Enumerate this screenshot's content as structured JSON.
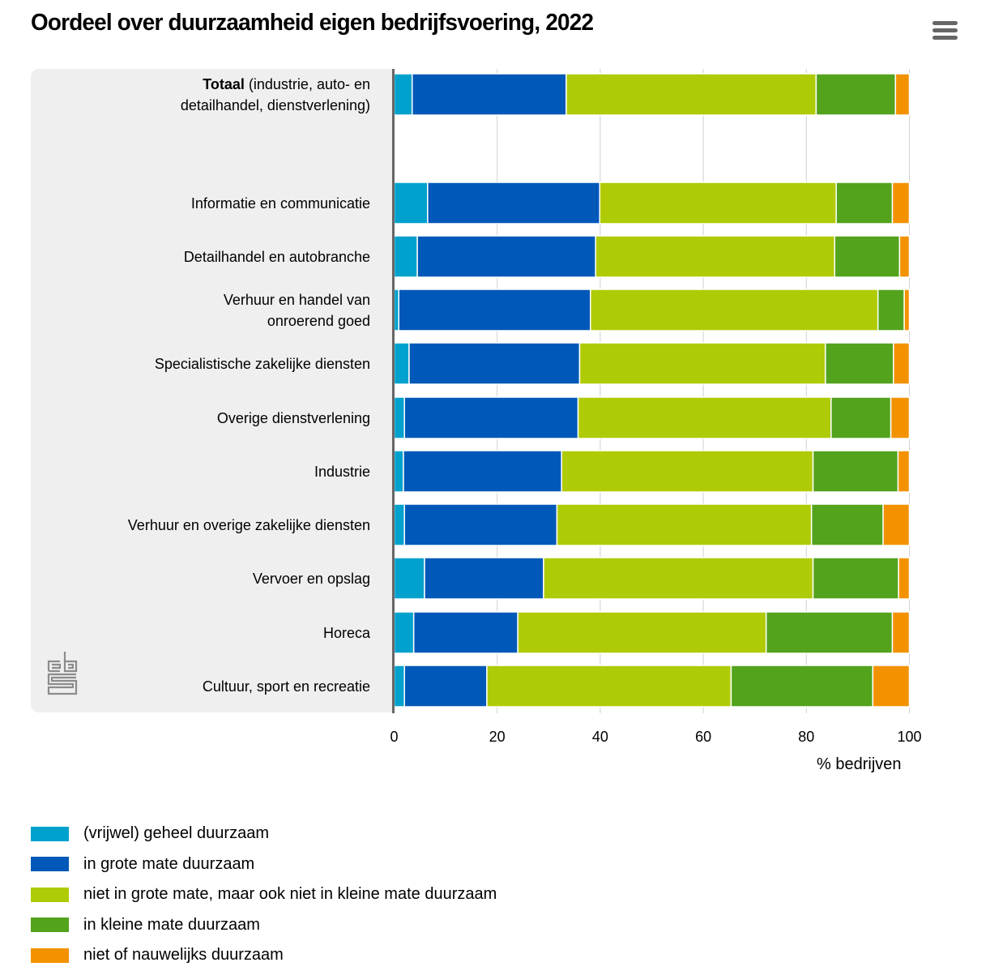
{
  "title": "Oordeel over duurzaamheid eigen bedrijfsvoering, 2022",
  "menu_icon": "hamburger-menu-icon",
  "logo_icon": "cbs-logo-icon",
  "colors": {
    "vrijwel_geheel": "#00a1cd",
    "grote_mate": "#0058b8",
    "neutraal": "#afcb05",
    "kleine_mate": "#53a31d",
    "niet": "#f39200"
  },
  "chart_data": {
    "type": "bar",
    "orientation": "horizontal",
    "stacked": true,
    "title": "Oordeel over duurzaamheid eigen bedrijfsvoering, 2022",
    "xlabel": "% bedrijven",
    "ylabel": "",
    "xlim": [
      0,
      100
    ],
    "xticks": [
      "0",
      "20",
      "40",
      "60",
      "80",
      "100"
    ],
    "grid": true,
    "legend_position": "bottom-left",
    "categories": [
      {
        "bold": "Totaal",
        "rest": " (industrie, auto- en\ndetailhandel, dienstverlening)"
      },
      {
        "bold": "",
        "rest": "Informatie en communicatie"
      },
      {
        "bold": "",
        "rest": "Detailhandel en autobranche"
      },
      {
        "bold": "",
        "rest": "Verhuur en handel van\nonroerend goed"
      },
      {
        "bold": "",
        "rest": "Specialistische zakelijke diensten"
      },
      {
        "bold": "",
        "rest": "Overige dienstverlening"
      },
      {
        "bold": "",
        "rest": "Industrie"
      },
      {
        "bold": "",
        "rest": "Verhuur en overige zakelijke diensten"
      },
      {
        "bold": "",
        "rest": "Vervoer en opslag"
      },
      {
        "bold": "",
        "rest": "Horeca"
      },
      {
        "bold": "",
        "rest": "Cultuur, sport en recreatie"
      }
    ],
    "series": [
      {
        "name": "(vrijwel) geheel duurzaam",
        "color": "#00a1cd",
        "values": [
          3.5,
          6.5,
          4.5,
          0.9,
          2.9,
          2.0,
          1.8,
          2.0,
          5.9,
          3.8,
          2.0
        ]
      },
      {
        "name": "in grote mate duurzaam",
        "color": "#0058b8",
        "values": [
          29.9,
          33.4,
          34.6,
          37.2,
          33.1,
          33.7,
          30.7,
          29.6,
          23.1,
          20.2,
          16.0
        ]
      },
      {
        "name": "niet in grote mate, maar ook niet in kleine mate duurzaam",
        "color": "#afcb05",
        "values": [
          48.5,
          45.9,
          46.4,
          55.8,
          47.7,
          49.1,
          48.8,
          49.4,
          52.3,
          48.2,
          47.4
        ]
      },
      {
        "name": "in kleine mate duurzaam",
        "color": "#53a31d",
        "values": [
          15.4,
          10.9,
          12.6,
          5.1,
          13.2,
          11.6,
          16.5,
          13.9,
          16.6,
          24.5,
          27.5
        ]
      },
      {
        "name": "niet of nauwelijks duurzaam",
        "color": "#f39200",
        "values": [
          2.7,
          3.3,
          1.9,
          1.0,
          3.1,
          3.6,
          2.2,
          5.1,
          2.1,
          3.3,
          7.1
        ]
      }
    ]
  }
}
